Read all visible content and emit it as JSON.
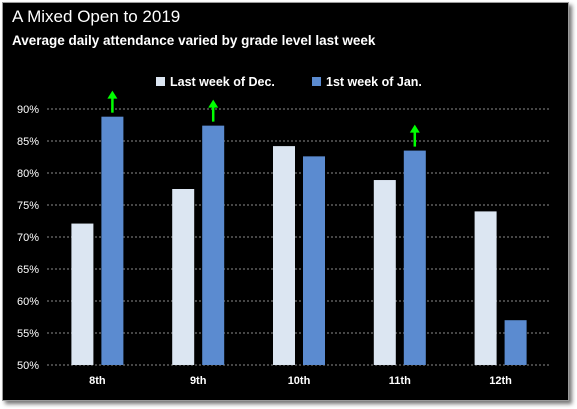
{
  "chart_data": {
    "type": "bar",
    "title": "A Mixed Open to 2019",
    "subtitle": "Average daily attendance varied by grade level last week",
    "categories": [
      "8th",
      "9th",
      "10th",
      "11th",
      "12th"
    ],
    "series": [
      {
        "name": "Last week of Dec.",
        "values": [
          72.1,
          77.5,
          84.2,
          78.9,
          74.0
        ],
        "color": "#dce6f2"
      },
      {
        "name": "1st week of Jan.",
        "values": [
          88.8,
          87.4,
          82.6,
          83.5,
          57.0
        ],
        "color": "#5b8bd0"
      }
    ],
    "ylim": [
      50,
      90
    ],
    "yticks": [
      50,
      55,
      60,
      65,
      70,
      75,
      80,
      85,
      90
    ],
    "ytick_suffix": "%",
    "xlabel": "",
    "ylabel": "",
    "grid": "horizontal dotted",
    "legend": "top-right",
    "annotations": [
      {
        "type": "up-arrow",
        "category": "8th",
        "color": "#00ff00"
      },
      {
        "type": "up-arrow",
        "category": "9th",
        "color": "#00ff00"
      },
      {
        "type": "up-arrow",
        "category": "11th",
        "color": "#00ff00"
      }
    ],
    "background": "#000000",
    "text_color": "#ffffff"
  }
}
